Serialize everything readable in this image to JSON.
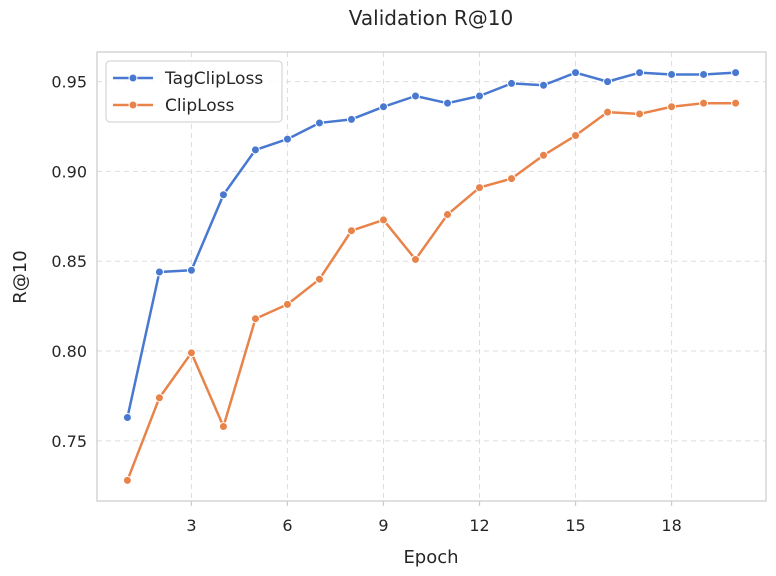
{
  "chart_data": {
    "type": "line",
    "title": "Validation R@10",
    "xlabel": "Epoch",
    "ylabel": "R@10",
    "x": [
      1,
      2,
      3,
      4,
      5,
      6,
      7,
      8,
      9,
      10,
      11,
      12,
      13,
      14,
      15,
      16,
      17,
      18,
      19,
      20
    ],
    "xticks": [
      3,
      6,
      9,
      12,
      15,
      18
    ],
    "yticks": [
      0.75,
      0.8,
      0.85,
      0.9,
      0.95
    ],
    "ytick_labels": [
      "0.75",
      "0.80",
      "0.85",
      "0.90",
      "0.95"
    ],
    "xlim": [
      0.05,
      20.95
    ],
    "ylim": [
      0.7165,
      0.9665
    ],
    "grid": true,
    "legend_position": "top-left",
    "series": [
      {
        "name": "TagClipLoss",
        "color": "#4878cf",
        "values": [
          0.763,
          0.844,
          0.845,
          0.887,
          0.912,
          0.918,
          0.927,
          0.929,
          0.936,
          0.942,
          0.938,
          0.942,
          0.949,
          0.948,
          0.955,
          0.95,
          0.955,
          0.954,
          0.954,
          0.955
        ]
      },
      {
        "name": "ClipLoss",
        "color": "#e8834a",
        "values": [
          0.728,
          0.774,
          0.799,
          0.758,
          0.818,
          0.826,
          0.84,
          0.867,
          0.873,
          0.851,
          0.876,
          0.891,
          0.896,
          0.909,
          0.92,
          0.933,
          0.932,
          0.936,
          0.938,
          0.938
        ]
      }
    ]
  }
}
